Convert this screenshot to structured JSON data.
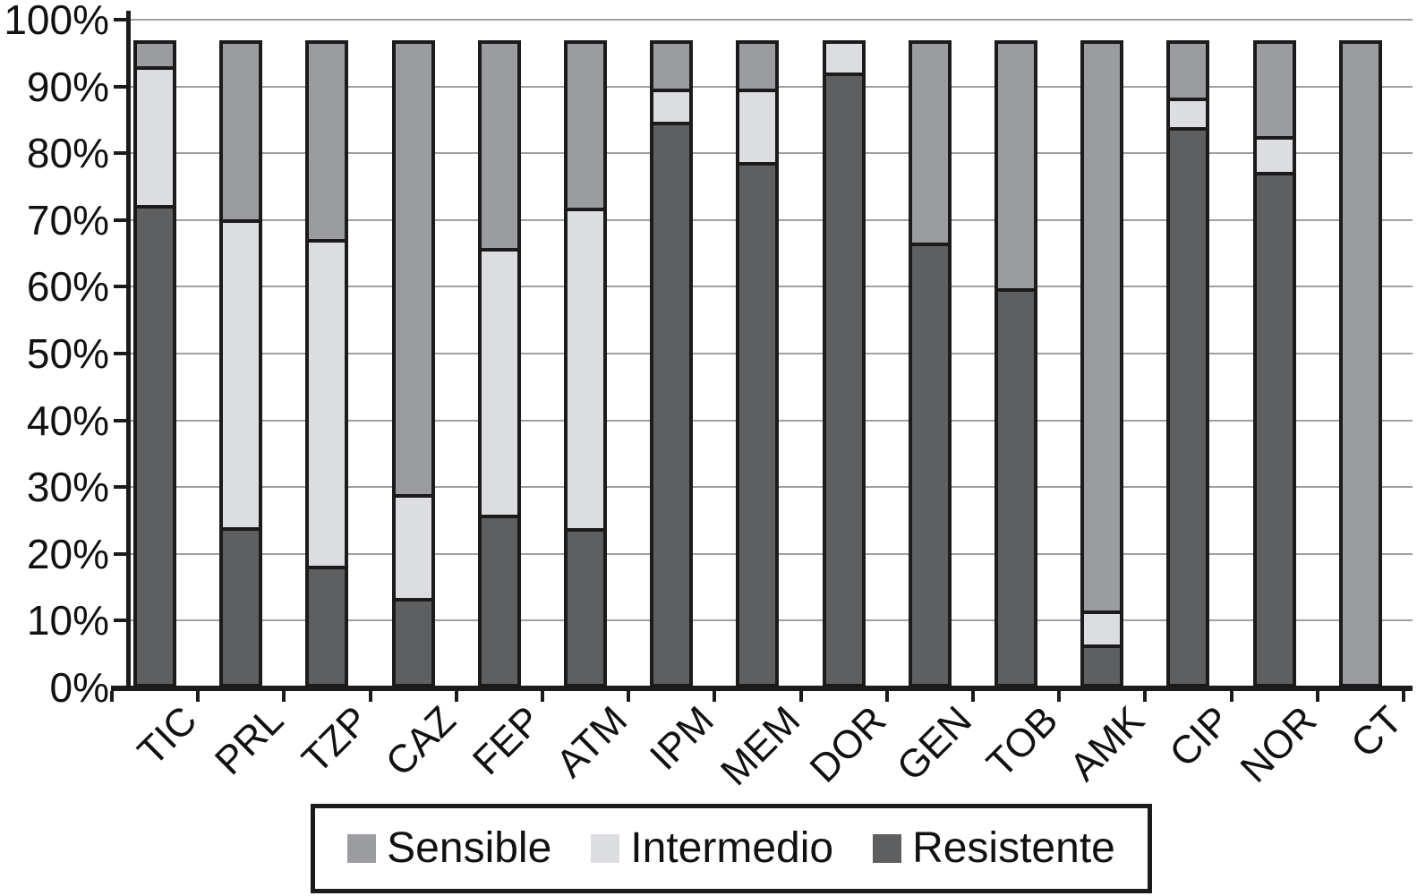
{
  "chart_data": {
    "type": "bar",
    "subtype": "stacked-100-percent",
    "title": "",
    "xlabel": "",
    "ylabel": "",
    "categories": [
      "TIC",
      "PRL",
      "TZP",
      "CAZ",
      "FEP",
      "ATM",
      "IPM",
      "MEM",
      "DOR",
      "GEN",
      "TOB",
      "AMK",
      "CIP",
      "NOR",
      "CT"
    ],
    "series": [
      {
        "name": "Sensible",
        "color": "#9a9c9f",
        "values": [
          3.4,
          26.9,
          29.9,
          69.0,
          31.2,
          25.0,
          6.9,
          6.9,
          0,
          30.3,
          37.2,
          86.7,
          8.2,
          14.1,
          96.9
        ]
      },
      {
        "name": "Intermedio",
        "color": "#dcddе0",
        "values": [
          20.7,
          46.6,
          49.5,
          15.3,
          40.3,
          48.6,
          4.4,
          10.6,
          4.4,
          0,
          0,
          4.7,
          4.0,
          5.0,
          0
        ]
      },
      {
        "name": "Resistente",
        "color": "#5e5f61",
        "values": [
          72.8,
          23.4,
          17.5,
          12.6,
          25.4,
          23.3,
          85.6,
          79.4,
          92.5,
          66.6,
          59.7,
          5.5,
          84.7,
          77.8,
          0
        ]
      }
    ],
    "stack_order_bottom_to_top": [
      "Resistente",
      "Intermedio",
      "Sensible"
    ],
    "bar_top_percent": 96.9,
    "ylim": [
      0,
      100
    ],
    "yticks": [
      "100%",
      "90%",
      "80%",
      "70%",
      "60%",
      "50%",
      "40%",
      "30%",
      "20%",
      "10%",
      "0%"
    ],
    "grid": true,
    "legend": {
      "position": "bottom",
      "items": [
        {
          "label": "Sensible",
          "color": "#9a9c9f"
        },
        {
          "label": "Intermedio",
          "color": "#dcdde0"
        },
        {
          "label": "Resistente",
          "color": "#5e5f61"
        }
      ]
    },
    "colors": {
      "axis": "#1b1b1b",
      "gridline": "#a0a0a0",
      "background": "#ffffff"
    }
  }
}
